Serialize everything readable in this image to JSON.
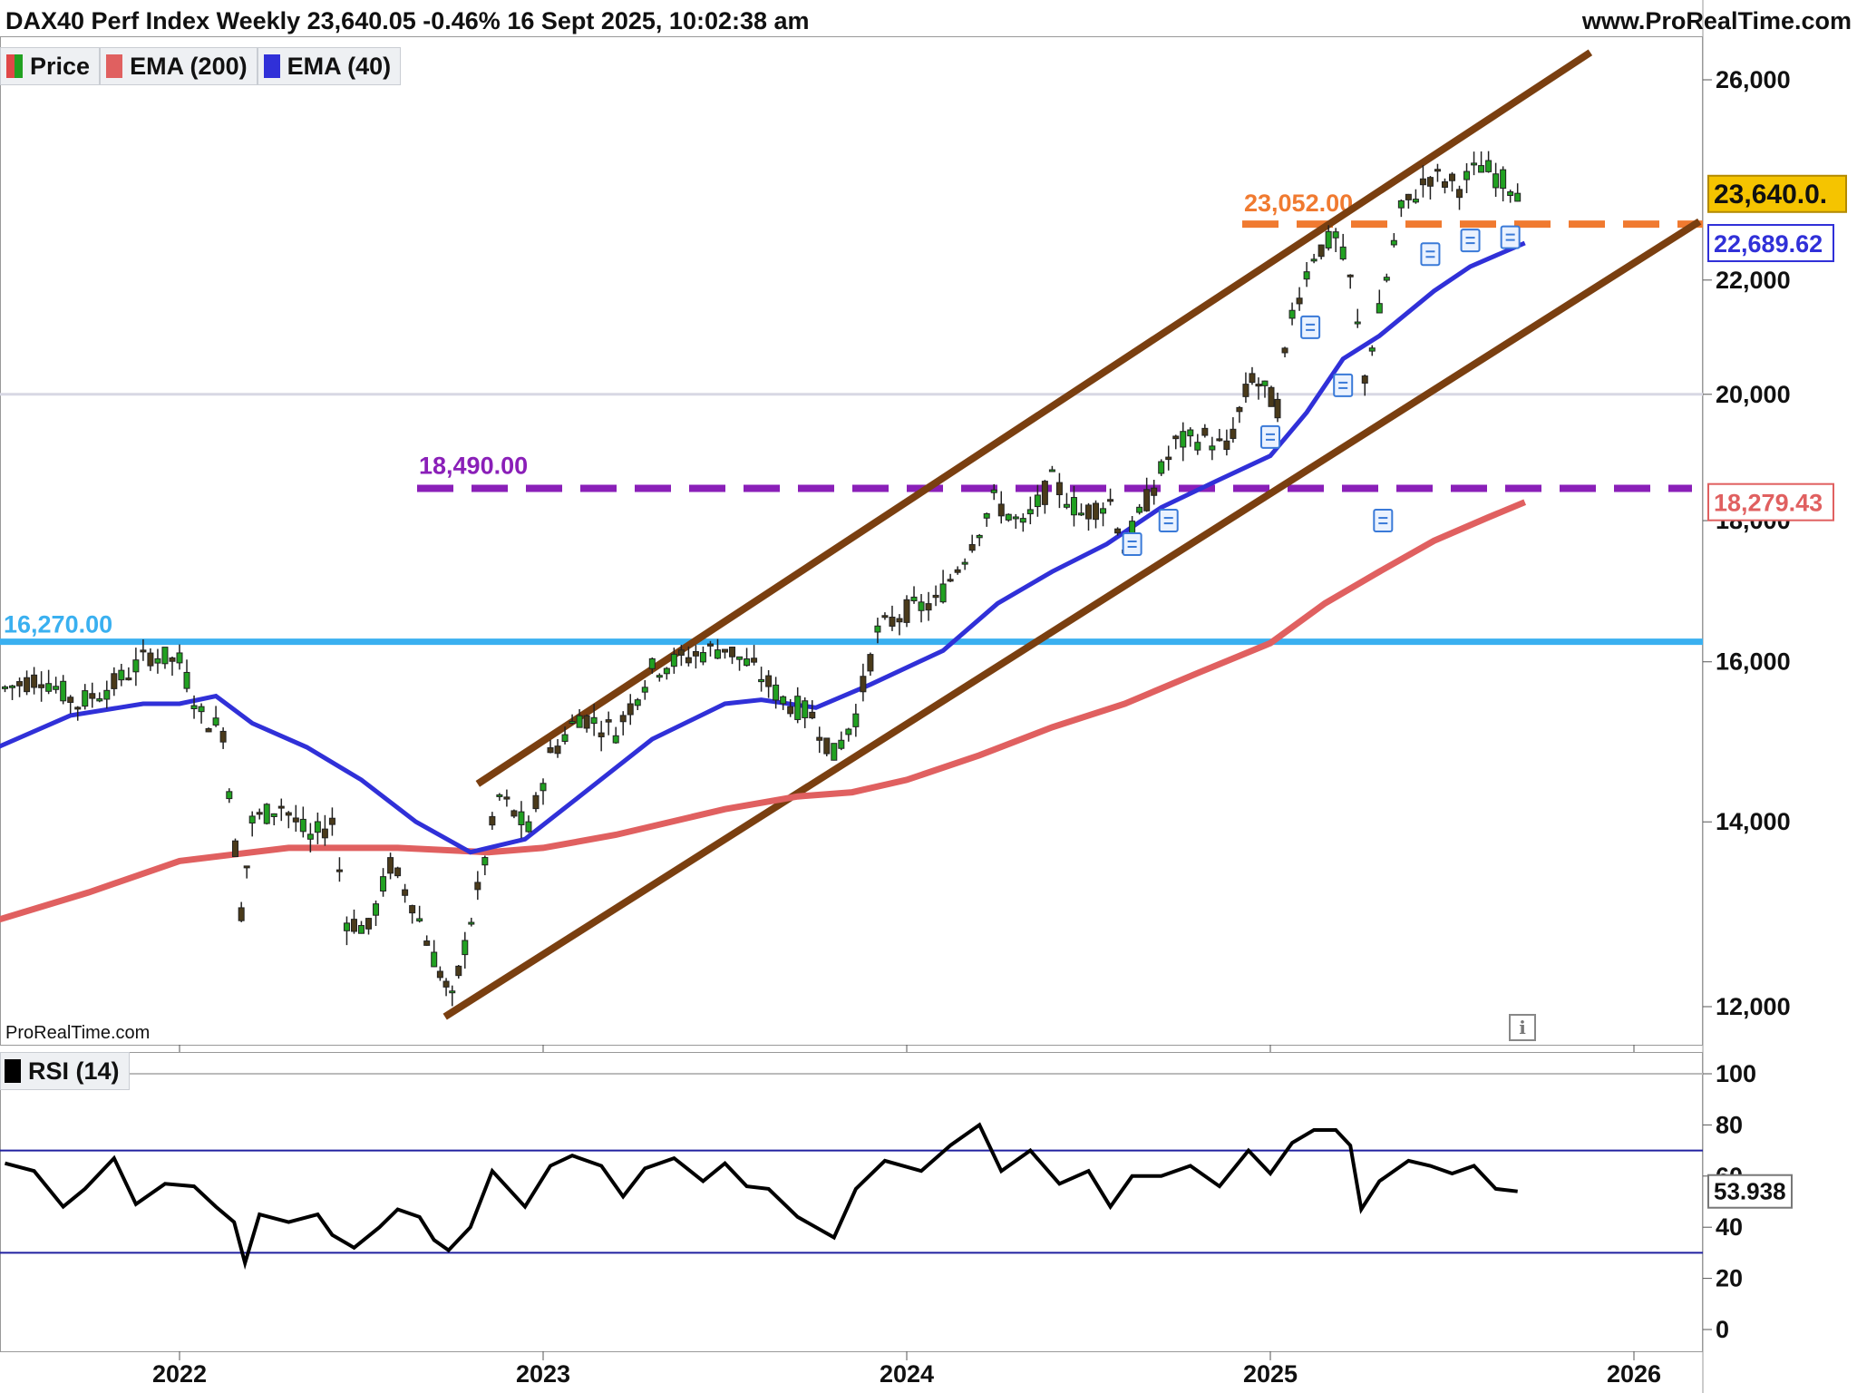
{
  "header": {
    "title": "DAX40 Perf Index Weekly 23,640.05 -0.46% 16 Sept 2025, 10:02:38 am",
    "site": "www.ProRealTime.com"
  },
  "legend": [
    {
      "label": "Price",
      "color_up": "#21a121",
      "color_down": "#e04848"
    },
    {
      "label": "EMA (200)",
      "color": "#e06060"
    },
    {
      "label": "EMA (40)",
      "color": "#3030d8"
    }
  ],
  "rsi_legend": {
    "label": "RSI (14)",
    "color": "#000000"
  },
  "watermark": "ProRealTime.com",
  "colors": {
    "channel": "#7a3f10",
    "ema200": "#e06060",
    "ema40": "#3030d8",
    "support_16270": "#3ab0f0",
    "level_18490": "#8a1fb8",
    "level_23052": "#f07a30",
    "price_tag": "#f5c400",
    "up": "#21a121",
    "down": "#4a3a1a"
  },
  "chart_data": [
    {
      "type": "candlestick",
      "title": "DAX40 Perf Index Weekly",
      "x_ticks": [
        "2022",
        "2023",
        "2024",
        "2025",
        "2026"
      ],
      "y_ticks": [
        "12,000",
        "14,000",
        "16,000",
        "18,000",
        "20,000",
        "22,000",
        "26,000"
      ],
      "ylim": [
        11800,
        26800
      ],
      "scale": "log",
      "price_close_series": [
        [
          2021.52,
          15650
        ],
        [
          2021.62,
          15800
        ],
        [
          2021.72,
          15450
        ],
        [
          2021.82,
          15700
        ],
        [
          2021.92,
          16100
        ],
        [
          2022.0,
          16000
        ],
        [
          2022.06,
          15300
        ],
        [
          2022.12,
          15100
        ],
        [
          2022.17,
          13000
        ],
        [
          2022.2,
          14000
        ],
        [
          2022.28,
          14200
        ],
        [
          2022.36,
          13800
        ],
        [
          2022.42,
          14000
        ],
        [
          2022.46,
          12900
        ],
        [
          2022.52,
          12800
        ],
        [
          2022.58,
          13500
        ],
        [
          2022.64,
          13100
        ],
        [
          2022.7,
          12500
        ],
        [
          2022.75,
          12050
        ],
        [
          2022.82,
          13200
        ],
        [
          2022.88,
          14300
        ],
        [
          2022.96,
          13900
        ],
        [
          2023.02,
          14800
        ],
        [
          2023.1,
          15300
        ],
        [
          2023.2,
          15100
        ],
        [
          2023.3,
          15900
        ],
        [
          2023.42,
          16100
        ],
        [
          2023.5,
          16200
        ],
        [
          2023.58,
          15900
        ],
        [
          2023.66,
          15500
        ],
        [
          2023.74,
          15300
        ],
        [
          2023.8,
          14800
        ],
        [
          2023.86,
          15300
        ],
        [
          2023.92,
          16400
        ],
        [
          2024.0,
          16700
        ],
        [
          2024.08,
          16800
        ],
        [
          2024.16,
          17500
        ],
        [
          2024.24,
          18300
        ],
        [
          2024.32,
          17900
        ],
        [
          2024.4,
          18600
        ],
        [
          2024.48,
          18100
        ],
        [
          2024.56,
          18300
        ],
        [
          2024.6,
          17600
        ],
        [
          2024.66,
          18300
        ],
        [
          2024.74,
          19200
        ],
        [
          2024.82,
          19300
        ],
        [
          2024.88,
          19100
        ],
        [
          2024.95,
          20300
        ],
        [
          2025.02,
          19800
        ],
        [
          2025.06,
          21400
        ],
        [
          2025.12,
          22500
        ],
        [
          2025.18,
          22800
        ],
        [
          2025.22,
          22000
        ],
        [
          2025.26,
          20300
        ],
        [
          2025.3,
          21400
        ],
        [
          2025.36,
          23300
        ],
        [
          2025.44,
          24000
        ],
        [
          2025.52,
          23800
        ],
        [
          2025.58,
          24200
        ],
        [
          2025.64,
          23900
        ],
        [
          2025.7,
          23640
        ]
      ],
      "ema40": [
        [
          2021.5,
          14900
        ],
        [
          2021.7,
          15300
        ],
        [
          2021.9,
          15450
        ],
        [
          2022.0,
          15450
        ],
        [
          2022.1,
          15550
        ],
        [
          2022.2,
          15200
        ],
        [
          2022.35,
          14900
        ],
        [
          2022.5,
          14500
        ],
        [
          2022.65,
          14000
        ],
        [
          2022.8,
          13650
        ],
        [
          2022.95,
          13800
        ],
        [
          2023.1,
          14300
        ],
        [
          2023.3,
          15000
        ],
        [
          2023.5,
          15450
        ],
        [
          2023.6,
          15500
        ],
        [
          2023.75,
          15400
        ],
        [
          2023.9,
          15700
        ],
        [
          2024.1,
          16150
        ],
        [
          2024.25,
          16800
        ],
        [
          2024.4,
          17250
        ],
        [
          2024.55,
          17650
        ],
        [
          2024.7,
          18200
        ],
        [
          2024.85,
          18600
        ],
        [
          2025.0,
          19000
        ],
        [
          2025.1,
          19700
        ],
        [
          2025.2,
          20600
        ],
        [
          2025.3,
          21000
        ],
        [
          2025.45,
          21800
        ],
        [
          2025.55,
          22250
        ],
        [
          2025.7,
          22689.62
        ]
      ],
      "ema200": [
        [
          2021.5,
          12900
        ],
        [
          2021.75,
          13200
        ],
        [
          2022.0,
          13550
        ],
        [
          2022.3,
          13700
        ],
        [
          2022.6,
          13700
        ],
        [
          2022.85,
          13650
        ],
        [
          2023.0,
          13700
        ],
        [
          2023.2,
          13850
        ],
        [
          2023.5,
          14150
        ],
        [
          2023.7,
          14300
        ],
        [
          2023.85,
          14350
        ],
        [
          2024.0,
          14500
        ],
        [
          2024.2,
          14800
        ],
        [
          2024.4,
          15150
        ],
        [
          2024.6,
          15450
        ],
        [
          2024.8,
          15850
        ],
        [
          2025.0,
          16250
        ],
        [
          2025.15,
          16800
        ],
        [
          2025.3,
          17250
        ],
        [
          2025.45,
          17700
        ],
        [
          2025.6,
          18050
        ],
        [
          2025.7,
          18279.43
        ]
      ],
      "channel_upper": [
        [
          2022.82,
          14450
        ],
        [
          2025.88,
          26600
        ]
      ],
      "channel_lower": [
        [
          2022.73,
          11900
        ],
        [
          2026.18,
          23100
        ]
      ],
      "levels": [
        {
          "label": "16,270.00",
          "value": 16270
        },
        {
          "label": "18,490.00",
          "value": 18490
        },
        {
          "label": "23,052.00",
          "value": 23052
        }
      ],
      "price_tags": [
        {
          "label": "23,640.0.",
          "value": 23640
        },
        {
          "label": "22,689.62",
          "value": 22689.62
        },
        {
          "label": "18,279.43",
          "value": 18279.43
        }
      ]
    },
    {
      "type": "line",
      "title": "RSI (14)",
      "y_ticks": [
        "100",
        "80",
        "60",
        "40",
        "20",
        "0"
      ],
      "ylim": [
        0,
        100
      ],
      "bands": [
        30,
        70
      ],
      "last_value_label": "53.938",
      "series": [
        [
          2021.52,
          65
        ],
        [
          2021.6,
          62
        ],
        [
          2021.68,
          48
        ],
        [
          2021.74,
          55
        ],
        [
          2021.82,
          67
        ],
        [
          2021.88,
          49
        ],
        [
          2021.96,
          57
        ],
        [
          2022.04,
          56
        ],
        [
          2022.1,
          48
        ],
        [
          2022.15,
          42
        ],
        [
          2022.18,
          26
        ],
        [
          2022.22,
          45
        ],
        [
          2022.3,
          42
        ],
        [
          2022.38,
          45
        ],
        [
          2022.42,
          37
        ],
        [
          2022.48,
          32
        ],
        [
          2022.55,
          40
        ],
        [
          2022.6,
          47
        ],
        [
          2022.66,
          44
        ],
        [
          2022.7,
          35
        ],
        [
          2022.74,
          31
        ],
        [
          2022.8,
          40
        ],
        [
          2022.86,
          62
        ],
        [
          2022.95,
          48
        ],
        [
          2023.02,
          64
        ],
        [
          2023.08,
          68
        ],
        [
          2023.16,
          64
        ],
        [
          2023.22,
          52
        ],
        [
          2023.28,
          63
        ],
        [
          2023.36,
          67
        ],
        [
          2023.44,
          58
        ],
        [
          2023.5,
          65
        ],
        [
          2023.56,
          56
        ],
        [
          2023.62,
          55
        ],
        [
          2023.7,
          44
        ],
        [
          2023.8,
          36
        ],
        [
          2023.86,
          55
        ],
        [
          2023.94,
          66
        ],
        [
          2024.04,
          62
        ],
        [
          2024.12,
          72
        ],
        [
          2024.2,
          80
        ],
        [
          2024.26,
          62
        ],
        [
          2024.34,
          70
        ],
        [
          2024.42,
          57
        ],
        [
          2024.5,
          62
        ],
        [
          2024.56,
          48
        ],
        [
          2024.62,
          60
        ],
        [
          2024.7,
          60
        ],
        [
          2024.78,
          64
        ],
        [
          2024.86,
          56
        ],
        [
          2024.94,
          70
        ],
        [
          2025.0,
          61
        ],
        [
          2025.06,
          73
        ],
        [
          2025.12,
          78
        ],
        [
          2025.18,
          78
        ],
        [
          2025.22,
          72
        ],
        [
          2025.25,
          47
        ],
        [
          2025.3,
          58
        ],
        [
          2025.38,
          66
        ],
        [
          2025.44,
          64
        ],
        [
          2025.5,
          61
        ],
        [
          2025.56,
          64
        ],
        [
          2025.62,
          55
        ],
        [
          2025.68,
          54
        ]
      ]
    }
  ]
}
